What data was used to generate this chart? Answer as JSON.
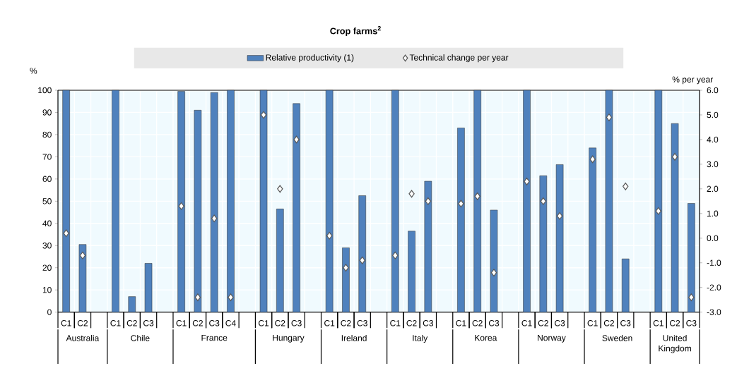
{
  "chart_data": {
    "type": "bar",
    "title": "Crop farms$^{2}$",
    "categories": [
      "C1",
      "C2",
      null,
      "C1",
      "C2",
      "C3",
      null,
      "C1",
      "C2",
      "C3",
      "C4",
      null,
      "C1",
      "C2",
      "C3",
      null,
      "C1",
      "C2",
      "C3",
      null,
      "C1",
      "C2",
      "C3",
      null,
      "C1",
      "C2",
      "C3",
      null,
      "C1",
      "C2",
      "C3",
      null,
      "C1",
      "C2",
      "C3",
      null,
      "C1",
      "C2",
      "C3"
    ],
    "series": [
      {
        "type": "bar",
        "name": "Relative productivity (1)",
        "color": "#4f81bd",
        "values": [
          100,
          30.5,
          null,
          100,
          7,
          22,
          null,
          99.5,
          91,
          99,
          100,
          null,
          100,
          46.5,
          94,
          null,
          100,
          29,
          52.5,
          null,
          100,
          36.5,
          59,
          null,
          83,
          100,
          46,
          null,
          100,
          61.5,
          66.5,
          null,
          74,
          100,
          24,
          null,
          100,
          85,
          49
        ]
      },
      {
        "type": "scatter",
        "name": "Technical change per year",
        "color": "#ffffff",
        "axis": "y2",
        "marker": "diamond",
        "values": [
          0.2,
          -0.7,
          null,
          null,
          null,
          null,
          null,
          1.3,
          -2.4,
          0.8,
          -2.4,
          null,
          5.0,
          2.0,
          4.0,
          null,
          0.1,
          -1.2,
          -0.9,
          null,
          -0.7,
          1.8,
          1.5,
          null,
          1.4,
          1.7,
          -1.4,
          null,
          2.3,
          1.5,
          0.9,
          null,
          3.2,
          4.9,
          2.1,
          null,
          1.1,
          3.3,
          -2.4
        ]
      }
    ],
    "ylabel": "%",
    "y2label": "% per year",
    "ylim": [
      0,
      100
    ],
    "yticks": [
      0,
      10,
      20,
      30,
      40,
      50,
      60,
      70,
      80,
      90,
      100
    ],
    "y2lim": [
      -3,
      6
    ],
    "y2ticks": [
      {
        "value": -3,
        "label": "-3.0"
      },
      {
        "value": -2,
        "label": "-2.0"
      },
      {
        "value": -1,
        "label": "-1.0"
      },
      {
        "value": 0,
        "label": "0.0"
      },
      {
        "value": 1,
        "label": "1.0"
      },
      {
        "value": 2,
        "label": "2.0"
      },
      {
        "value": 3,
        "label": "3.0"
      },
      {
        "value": 4,
        "label": "4.0"
      },
      {
        "value": 5,
        "label": "5.0"
      },
      {
        "value": 6,
        "label": "6.0"
      }
    ],
    "grid": true,
    "legend": "top",
    "annotations": [
      "Australia",
      "Chile",
      "France",
      "Hungary",
      "Ireland",
      "Italy",
      "Korea",
      "Norway",
      "Sweden",
      "United Kingdom"
    ]
  }
}
